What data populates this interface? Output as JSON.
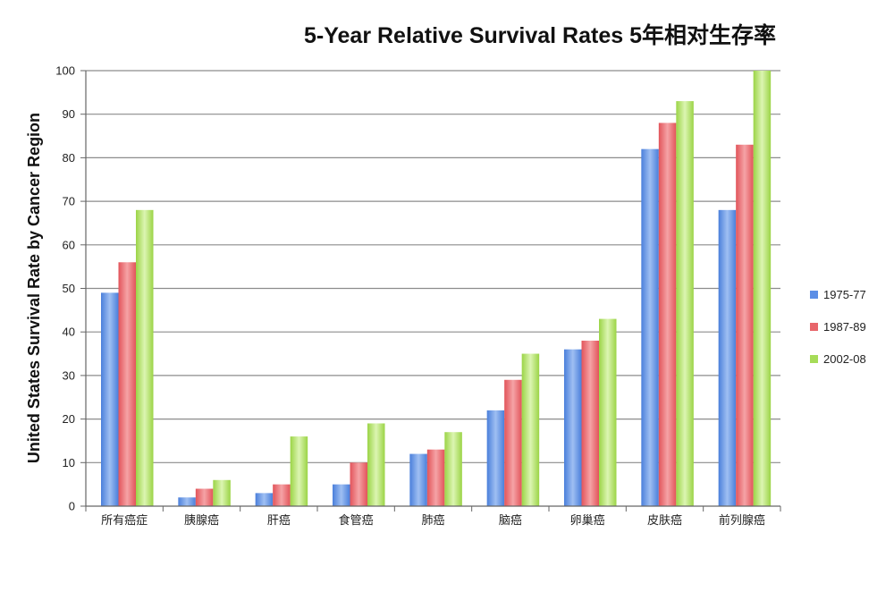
{
  "chart_data": {
    "type": "bar",
    "title": "5-Year Relative Survival Rates 5年相对生存率",
    "xlabel": "",
    "ylabel": "United States Survival Rate by Cancer Region",
    "ylim": [
      0,
      100
    ],
    "yticks": [
      0,
      10,
      20,
      30,
      40,
      50,
      60,
      70,
      80,
      90,
      100
    ],
    "grid": true,
    "legend_position": "right",
    "categories": [
      "所有癌症",
      "胰腺癌",
      "肝癌",
      "食管癌",
      "肺癌",
      "脑癌",
      "卵巢癌",
      "皮肤癌",
      "前列腺癌"
    ],
    "series": [
      {
        "name": "1975-77",
        "color": "#5b8ee6",
        "values": [
          49,
          2,
          3,
          5,
          12,
          22,
          36,
          82,
          68
        ]
      },
      {
        "name": "1987-89",
        "color": "#e8656a",
        "values": [
          56,
          4,
          5,
          10,
          13,
          29,
          38,
          88,
          83
        ]
      },
      {
        "name": "2002-08",
        "color": "#a6dc58",
        "values": [
          68,
          6,
          16,
          19,
          17,
          35,
          43,
          93,
          100
        ]
      }
    ]
  }
}
